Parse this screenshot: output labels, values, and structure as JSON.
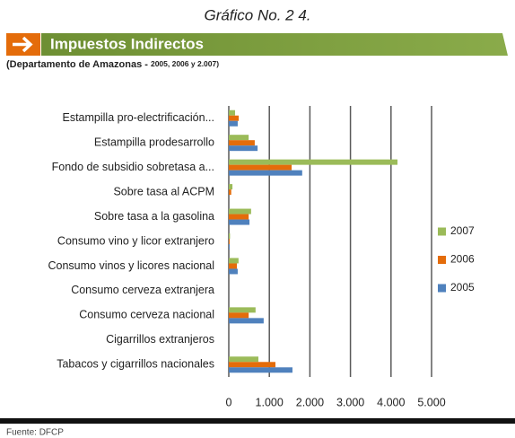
{
  "chart_data": {
    "type": "hbar",
    "title": "Gráfico No. 2 4.",
    "heading": "Impuestos Indirectos",
    "subtitle": "(Departamento de Amazonas -",
    "subtitle_years": "2005, 2006 y 2.007)",
    "source": "Fuente: DFCP",
    "categories": [
      "Estampilla pro-electrificación...",
      "Estampilla prodesarrollo",
      "Fondo de subsidio sobretasa a...",
      "Sobre tasa al ACPM",
      "Sobre tasa a la gasolina",
      "Consumo vino y licor extranjero",
      "Consumo vinos y licores nacional",
      "Consumo cerveza extranjera",
      "Consumo cerveza nacional",
      "Cigarrillos extranjeros",
      "Tabacos y cigarrillos nacionales"
    ],
    "series": [
      {
        "name": "2007",
        "color": "#9bbb59",
        "values": [
          155,
          490,
          4160,
          90,
          550,
          30,
          240,
          0,
          660,
          0,
          730
        ]
      },
      {
        "name": "2006",
        "color": "#e46c0a",
        "values": [
          245,
          640,
          1550,
          60,
          490,
          20,
          200,
          0,
          490,
          0,
          1150
        ]
      },
      {
        "name": "2005",
        "color": "#4f81bd",
        "values": [
          220,
          710,
          1810,
          0,
          510,
          20,
          220,
          0,
          860,
          0,
          1570
        ]
      }
    ],
    "xlim": [
      0,
      5000
    ],
    "xticks": [
      0,
      {
        "value": 1000,
        "label": "1.000"
      },
      {
        "value": 2000,
        "label": "2.000"
      },
      {
        "value": 3000,
        "label": "3.000"
      },
      {
        "value": 4000,
        "label": "4.000"
      },
      {
        "value": 5000,
        "label": "5.000"
      }
    ],
    "grid": true,
    "legend": "right"
  }
}
